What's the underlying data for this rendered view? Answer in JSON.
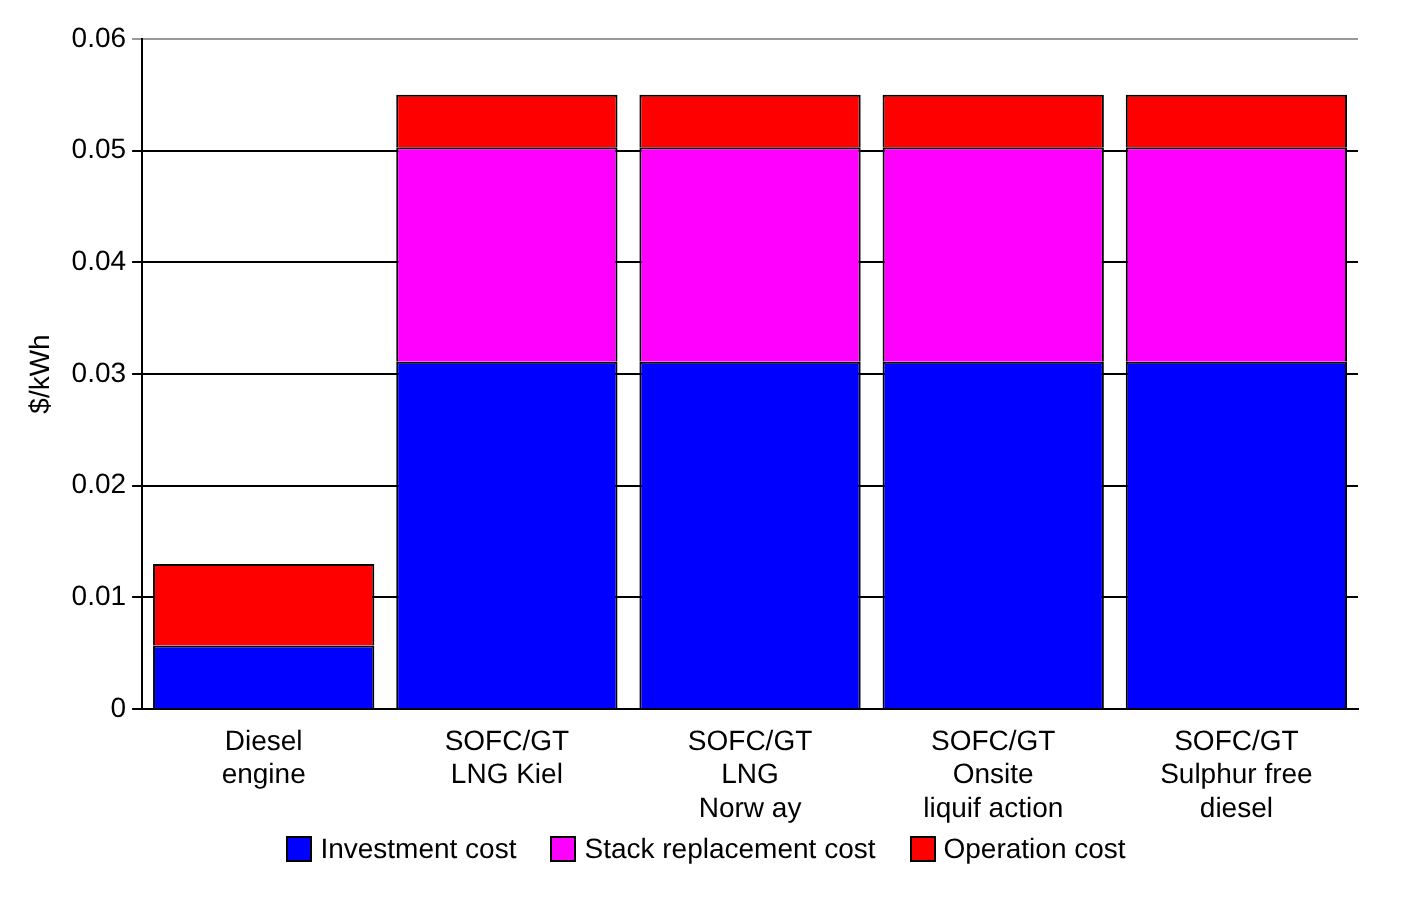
{
  "chart_data": {
    "type": "bar",
    "stacked": true,
    "ylabel": "$/kWh",
    "categories": [
      "Diesel\nengine",
      "SOFC/GT\nLNG Kiel",
      "SOFC/GT\nLNG\nNorw ay",
      "SOFC/GT\nOnsite\nliquif action",
      "SOFC/GT\nSulphur free\ndiesel"
    ],
    "series": [
      {
        "name": "Investment cost",
        "color": "#0000ff",
        "values": [
          0.0057,
          0.0311,
          0.0311,
          0.0311,
          0.0311
        ]
      },
      {
        "name": "Stack replacement cost",
        "color": "#ff00ff",
        "values": [
          null,
          0.0192,
          0.0192,
          0.0192,
          0.0192
        ]
      },
      {
        "name": "Operation cost",
        "color": "#ff0000",
        "values": [
          0.0073,
          0.0047,
          0.0047,
          0.0047,
          0.0047
        ]
      }
    ],
    "ylim": [
      0,
      0.06
    ],
    "yticks": [
      0,
      0.01,
      0.02,
      0.03,
      0.04,
      0.05,
      0.06
    ],
    "grid": "y",
    "legend": "bottom"
  }
}
